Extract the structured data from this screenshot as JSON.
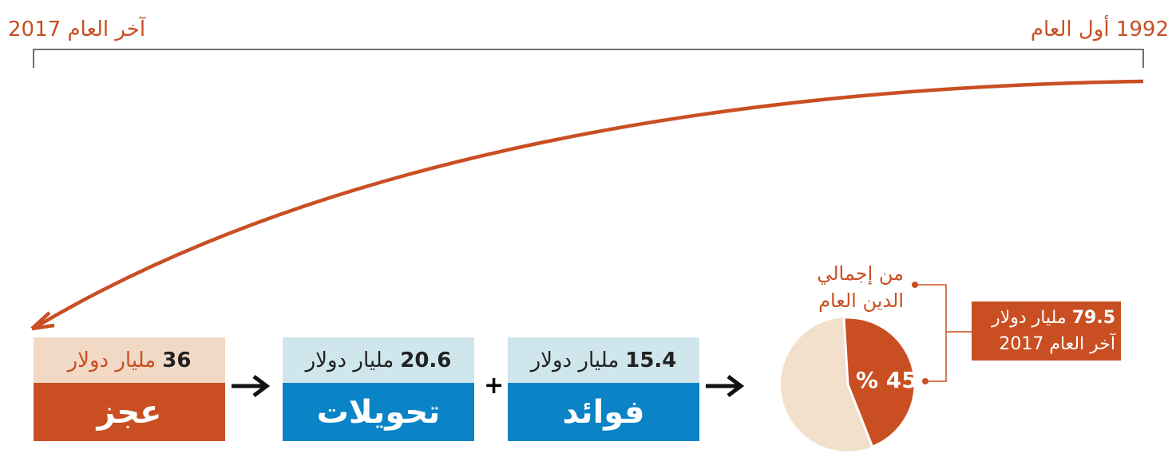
{
  "timeline": {
    "end_year": "2017",
    "end_label": "آخر العام",
    "start_year": "1992",
    "start_label": "أول العام"
  },
  "boxes": [
    {
      "amount": "36",
      "unit": "مليار دولار",
      "label": "عجز"
    },
    {
      "amount": "20.6",
      "unit": "مليار دولار",
      "label": "تحويلات"
    },
    {
      "amount": "15.4",
      "unit": "مليار دولار",
      "label": "فوائد"
    }
  ],
  "plus": "+",
  "pie": {
    "value": 45,
    "label": "% 45",
    "caption_line1": "من إجمالي",
    "caption_line2": "الدين العام"
  },
  "total": {
    "amount": "79.5",
    "unit": "مليار دولار",
    "line2": "آخر العام 2017"
  }
}
